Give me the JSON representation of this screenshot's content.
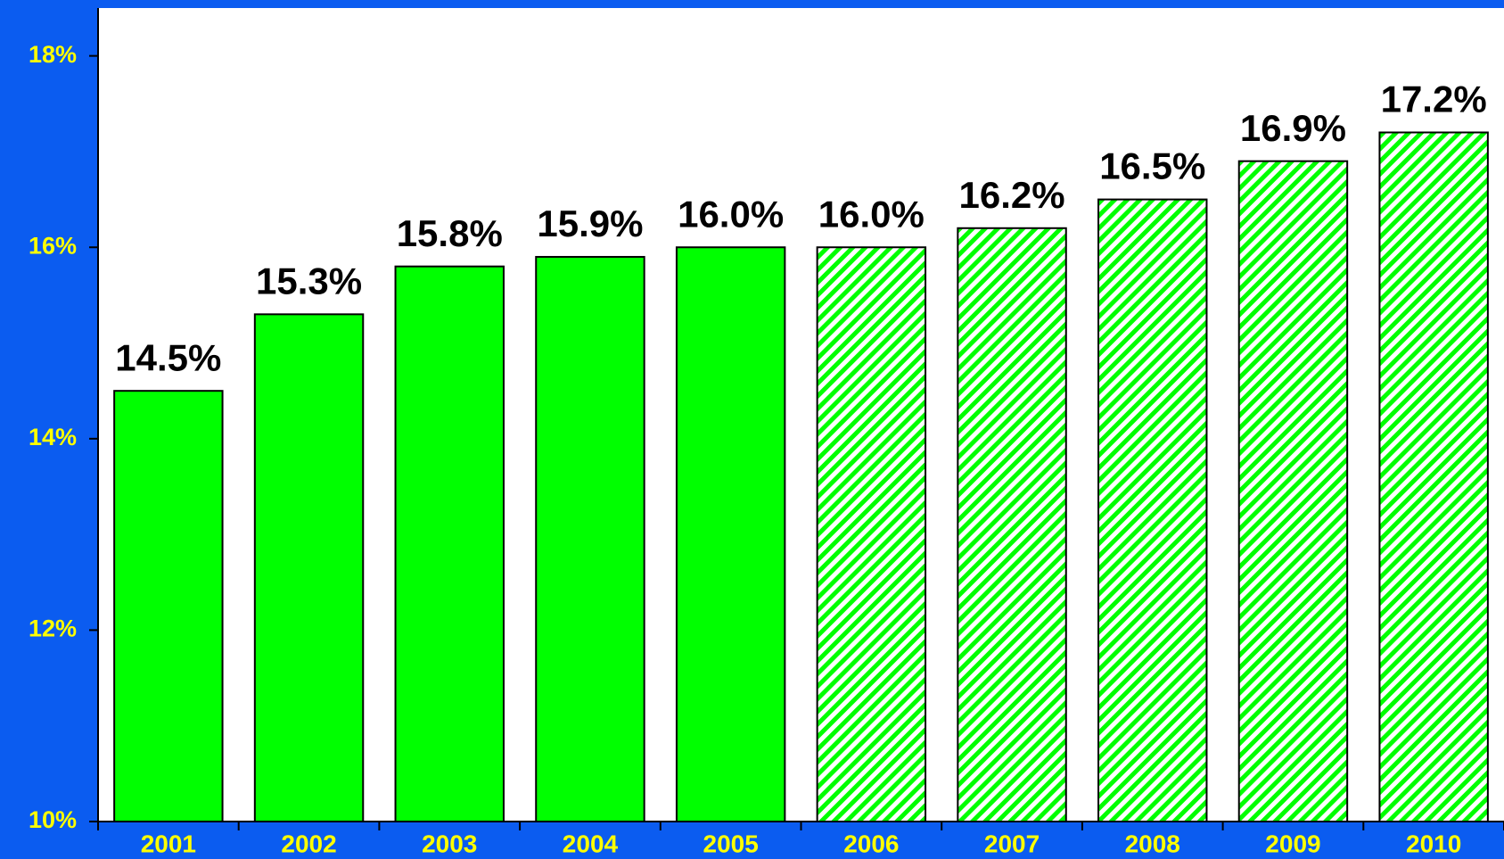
{
  "chart_data": {
    "type": "bar",
    "categories": [
      "2001",
      "2002",
      "2003",
      "2004",
      "2005",
      "2006",
      "2007",
      "2008",
      "2009",
      "2010"
    ],
    "values": [
      14.5,
      15.3,
      15.8,
      15.9,
      16.0,
      16.0,
      16.2,
      16.5,
      16.9,
      17.2
    ],
    "value_labels": [
      "14.5%",
      "15.3%",
      "15.8%",
      "15.9%",
      "16.0%",
      "16.0%",
      "16.2%",
      "16.5%",
      "16.9%",
      "17.2%"
    ],
    "styles": [
      "solid",
      "solid",
      "solid",
      "solid",
      "solid",
      "hatched",
      "hatched",
      "hatched",
      "hatched",
      "hatched"
    ],
    "color": "#00ff00",
    "ylim": [
      10,
      18.5
    ],
    "yticks": [
      {
        "value": 10,
        "label": "10%"
      },
      {
        "value": 12,
        "label": "12%"
      },
      {
        "value": 14,
        "label": "14%"
      },
      {
        "value": 16,
        "label": "16%"
      },
      {
        "value": 18,
        "label": "18%"
      }
    ]
  }
}
